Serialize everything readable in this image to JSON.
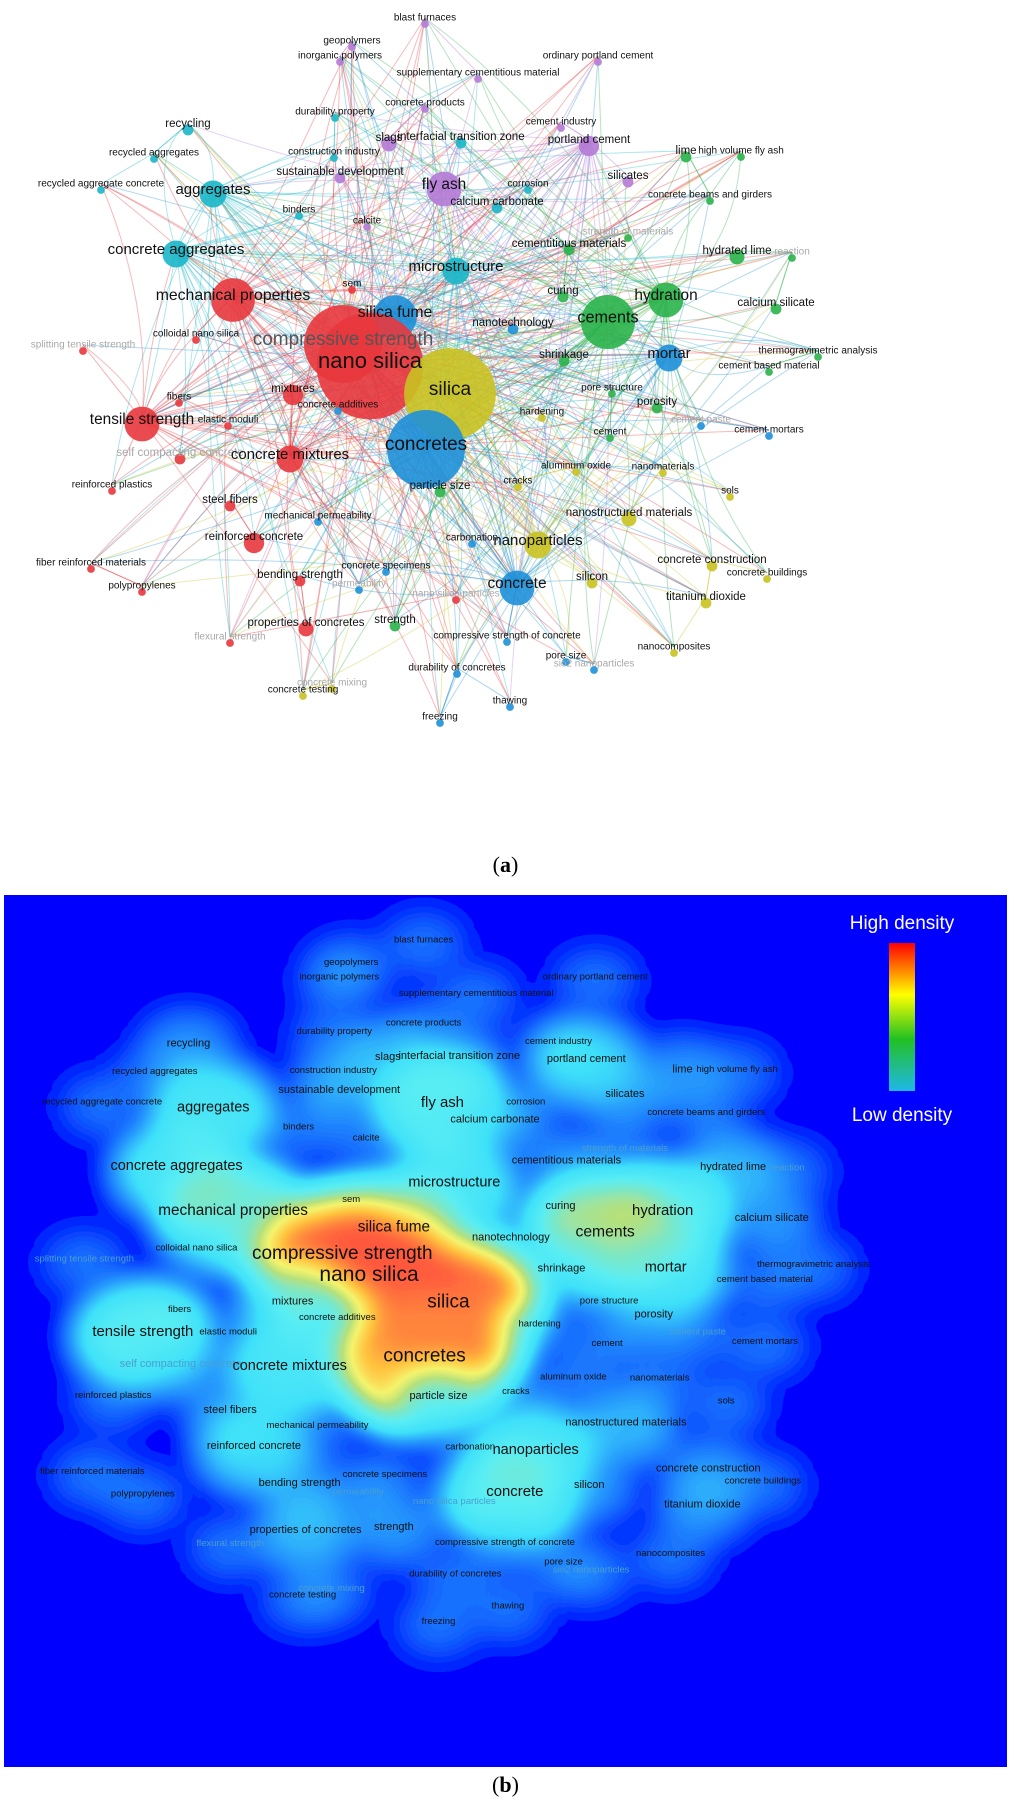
{
  "captions": {
    "a": "a",
    "b": "b"
  },
  "legend": {
    "high": "High density",
    "low": "Low density"
  },
  "colors": {
    "red": "#e8373d",
    "blue": "#1e90d8",
    "cyan": "#19b6c8",
    "green": "#2ab34a",
    "yellow": "#c9c221",
    "purple": "#b57ad6"
  },
  "network_nodes": [
    {
      "label": "blast furnaces",
      "c": "purple",
      "w": 1
    },
    {
      "label": "geopolymers",
      "c": "purple",
      "w": 1
    },
    {
      "label": "inorganic polymers",
      "c": "purple",
      "w": 1
    },
    {
      "label": "ordinary portland cement",
      "c": "purple",
      "w": 1
    },
    {
      "label": "supplementary cementitious material",
      "c": "purple",
      "w": 1
    },
    {
      "label": "concrete products",
      "c": "purple",
      "w": 1
    },
    {
      "label": "durability property",
      "c": "cyan",
      "w": 1
    },
    {
      "label": "recycling",
      "c": "cyan",
      "w": 2
    },
    {
      "label": "cement industry",
      "c": "purple",
      "w": 1
    },
    {
      "label": "slags",
      "c": "purple",
      "w": 3
    },
    {
      "label": "interfacial transition zone",
      "c": "cyan",
      "w": 2
    },
    {
      "label": "portland cement",
      "c": "purple",
      "w": 4
    },
    {
      "label": "recycled aggregates",
      "c": "cyan",
      "w": 1
    },
    {
      "label": "construction industry",
      "c": "cyan",
      "w": 1
    },
    {
      "label": "lime",
      "c": "green",
      "w": 2
    },
    {
      "label": "high volume fly ash",
      "c": "green",
      "w": 1
    },
    {
      "label": "recycled aggregate concrete",
      "c": "cyan",
      "w": 1
    },
    {
      "label": "aggregates",
      "c": "cyan",
      "w": 5
    },
    {
      "label": "sustainable development",
      "c": "purple",
      "w": 2
    },
    {
      "label": "fly ash",
      "c": "purple",
      "w": 6
    },
    {
      "label": "corrosion",
      "c": "cyan",
      "w": 1
    },
    {
      "label": "silicates",
      "c": "purple",
      "w": 2
    },
    {
      "label": "calcium carbonate",
      "c": "cyan",
      "w": 2
    },
    {
      "label": "concrete beams and girders",
      "c": "green",
      "w": 1
    },
    {
      "label": "binders",
      "c": "cyan",
      "w": 1
    },
    {
      "label": "calcite",
      "c": "purple",
      "w": 1
    },
    {
      "label": "strength of materials",
      "c": "green",
      "w": 1
    },
    {
      "label": "concrete aggregates",
      "c": "cyan",
      "w": 5
    },
    {
      "label": "cementitious materials",
      "c": "green",
      "w": 2
    },
    {
      "label": "hydrated lime",
      "c": "green",
      "w": 3
    },
    {
      "label": "reaction",
      "c": "green",
      "w": 1
    },
    {
      "label": "microstructure",
      "c": "cyan",
      "w": 5
    },
    {
      "label": "sem",
      "c": "red",
      "w": 1
    },
    {
      "label": "mechanical properties",
      "c": "red",
      "w": 7
    },
    {
      "label": "curing",
      "c": "green",
      "w": 2
    },
    {
      "label": "hydration",
      "c": "green",
      "w": 6
    },
    {
      "label": "calcium silicate",
      "c": "green",
      "w": 2
    },
    {
      "label": "silica fume",
      "c": "blue",
      "w": 7
    },
    {
      "label": "cements",
      "c": "green",
      "w": 8
    },
    {
      "label": "nanotechnology",
      "c": "blue",
      "w": 2
    },
    {
      "label": "colloidal nano silica",
      "c": "red",
      "w": 1
    },
    {
      "label": "splitting tensile strength",
      "c": "red",
      "w": 1
    },
    {
      "label": "compressive strength",
      "c": "red",
      "w": 10
    },
    {
      "label": "nano silica",
      "c": "red",
      "w": 12
    },
    {
      "label": "mortar",
      "c": "blue",
      "w": 5
    },
    {
      "label": "thermogravimetric analysis",
      "c": "green",
      "w": 1
    },
    {
      "label": "shrinkage",
      "c": "green",
      "w": 2
    },
    {
      "label": "cement based material",
      "c": "green",
      "w": 1
    },
    {
      "label": "silica",
      "c": "yellow",
      "w": 11
    },
    {
      "label": "pore structure",
      "c": "green",
      "w": 1
    },
    {
      "label": "fibers",
      "c": "red",
      "w": 1
    },
    {
      "label": "mixtures",
      "c": "red",
      "w": 4
    },
    {
      "label": "porosity",
      "c": "green",
      "w": 2
    },
    {
      "label": "concrete additives",
      "c": "blue",
      "w": 1
    },
    {
      "label": "tensile strength",
      "c": "red",
      "w": 6
    },
    {
      "label": "elastic moduli",
      "c": "red",
      "w": 1
    },
    {
      "label": "hardening",
      "c": "yellow",
      "w": 1
    },
    {
      "label": "cement paste",
      "c": "blue",
      "w": 1
    },
    {
      "label": "cement",
      "c": "green",
      "w": 1
    },
    {
      "label": "cement mortars",
      "c": "blue",
      "w": 1
    },
    {
      "label": "self compacting concrete",
      "c": "red",
      "w": 2
    },
    {
      "label": "concrete mixtures",
      "c": "red",
      "w": 5
    },
    {
      "label": "concretes",
      "c": "blue",
      "w": 10
    },
    {
      "label": "aluminum oxide",
      "c": "yellow",
      "w": 1
    },
    {
      "label": "nanomaterials",
      "c": "yellow",
      "w": 1
    },
    {
      "label": "reinforced plastics",
      "c": "red",
      "w": 1
    },
    {
      "label": "particle size",
      "c": "green",
      "w": 2
    },
    {
      "label": "cracks",
      "c": "yellow",
      "w": 1
    },
    {
      "label": "sols",
      "c": "yellow",
      "w": 1
    },
    {
      "label": "steel fibers",
      "c": "red",
      "w": 2
    },
    {
      "label": "mechanical permeability",
      "c": "blue",
      "w": 1
    },
    {
      "label": "nanostructured materials",
      "c": "yellow",
      "w": 3
    },
    {
      "label": "reinforced concrete",
      "c": "red",
      "w": 4
    },
    {
      "label": "fiber reinforced materials",
      "c": "red",
      "w": 1
    },
    {
      "label": "carbonation",
      "c": "blue",
      "w": 1
    },
    {
      "label": "nanoparticles",
      "c": "yellow",
      "w": 5
    },
    {
      "label": "concrete construction",
      "c": "yellow",
      "w": 2
    },
    {
      "label": "polypropylenes",
      "c": "red",
      "w": 1
    },
    {
      "label": "bending strength",
      "c": "red",
      "w": 2
    },
    {
      "label": "concrete specimens",
      "c": "blue",
      "w": 1
    },
    {
      "label": "permeability",
      "c": "blue",
      "w": 1
    },
    {
      "label": "nano silica particles",
      "c": "red",
      "w": 1
    },
    {
      "label": "concrete",
      "c": "blue",
      "w": 6
    },
    {
      "label": "silicon",
      "c": "yellow",
      "w": 2
    },
    {
      "label": "concrete buildings",
      "c": "yellow",
      "w": 1
    },
    {
      "label": "titanium dioxide",
      "c": "yellow",
      "w": 2
    },
    {
      "label": "strength",
      "c": "green",
      "w": 2
    },
    {
      "label": "properties of concretes",
      "c": "red",
      "w": 3
    },
    {
      "label": "flexural strength",
      "c": "red",
      "w": 1
    },
    {
      "label": "compressive strength of concrete",
      "c": "blue",
      "w": 1
    },
    {
      "label": "pore size",
      "c": "blue",
      "w": 1
    },
    {
      "label": "sio2 nanoparticles",
      "c": "blue",
      "w": 1
    },
    {
      "label": "nanocomposites",
      "c": "yellow",
      "w": 1
    },
    {
      "label": "durability of concretes",
      "c": "blue",
      "w": 1
    },
    {
      "label": "concrete mixing",
      "c": "yellow",
      "w": 1
    },
    {
      "label": "concrete testing",
      "c": "yellow",
      "w": 1
    },
    {
      "label": "thawing",
      "c": "blue",
      "w": 1
    },
    {
      "label": "freezing",
      "c": "blue",
      "w": 1
    }
  ]
}
